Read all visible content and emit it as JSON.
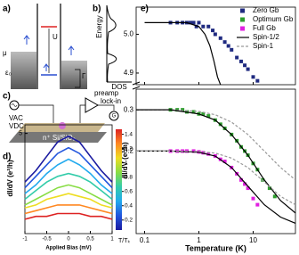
{
  "diagrams": {
    "a": {
      "label": "a)",
      "u": "U",
      "mu": "μ",
      "epsilon": "ε₀",
      "gamma": "Γ"
    },
    "b": {
      "label": "b)",
      "y_label": "Energy",
      "x_label": "DOS"
    },
    "c": {
      "label": "c)",
      "v_ac": "VAC",
      "v_dc": "VDC",
      "preamp": "preamp",
      "lock_in": "lock-in",
      "g": "G",
      "substrate": "n⁺ Si/SiO₂"
    }
  },
  "chart_data": [
    {
      "type": "scatter",
      "panel_label": "e)",
      "xlabel": "Temperature (K)",
      "ylabel": "dI/dV (e²/h)",
      "log_x": true,
      "xlim": [
        0.07,
        60
      ],
      "xticks": [
        0.1,
        1,
        10
      ],
      "panels": [
        {
          "ylim": [
            4.87,
            5.07
          ],
          "yticks": [
            {
              "value": 4.9,
              "label": "4.9"
            },
            {
              "value": 5,
              "label": "5.0"
            }
          ]
        },
        {
          "ylim": [
            0,
            0.35
          ],
          "yticks": [
            0.2,
            0.3
          ]
        }
      ],
      "series": [
        {
          "name": "Zero Gb",
          "color": "#1f2a80",
          "style": "markers",
          "panel": 0,
          "x": [
            0.3,
            0.4,
            0.5,
            0.6,
            0.7,
            0.8,
            0.9,
            1.0,
            1.2,
            1.5,
            1.8,
            2.0,
            2.5,
            3,
            3.5,
            4,
            5,
            6,
            7,
            8,
            10,
            12
          ],
          "values": [
            5.03,
            5.03,
            5.03,
            5.03,
            5.03,
            5.03,
            5.02,
            5.03,
            5.02,
            5.02,
            5.01,
            5.0,
            4.99,
            4.98,
            4.97,
            4.96,
            4.94,
            4.93,
            4.92,
            4.91,
            4.89,
            4.88
          ]
        },
        {
          "name": "Optimum Gb",
          "color": "#2e9e2e",
          "style": "markers",
          "panel": 1,
          "x": [
            0.3,
            0.4,
            0.5,
            0.6,
            0.8,
            1,
            1.2,
            1.5,
            2,
            2.5,
            3,
            4,
            5,
            6,
            7,
            8,
            10,
            12,
            15,
            20,
            25
          ],
          "values": [
            0.3,
            0.3,
            0.3,
            0.295,
            0.295,
            0.29,
            0.29,
            0.285,
            0.275,
            0.265,
            0.255,
            0.24,
            0.225,
            0.21,
            0.2,
            0.19,
            0.17,
            0.155,
            0.13,
            0.11,
            0.09
          ]
        },
        {
          "name": "Full Gb",
          "color": "#e020e0",
          "style": "markers",
          "panel": 1,
          "x": [
            0.3,
            0.4,
            0.5,
            0.6,
            0.8,
            1,
            1.2,
            1.5,
            2,
            2.5,
            3,
            4,
            5,
            6,
            7,
            8,
            10,
            12
          ],
          "values": [
            0.2,
            0.2,
            0.2,
            0.2,
            0.2,
            0.198,
            0.196,
            0.193,
            0.188,
            0.18,
            0.175,
            0.16,
            0.145,
            0.13,
            0.12,
            0.11,
            0.085,
            0.07
          ]
        },
        {
          "name": "Spin-1/2",
          "color": "#000000",
          "style": "line",
          "panel": 0,
          "x": [
            0.1,
            0.3,
            0.6,
            1.0,
            1.3,
            1.6,
            1.9,
            2.2,
            2.5
          ],
          "values": [
            5.03,
            5.03,
            5.03,
            5.02,
            5.0,
            4.97,
            4.93,
            4.89,
            4.87
          ]
        },
        {
          "name": "Spin-1",
          "color": "#999999",
          "style": "line",
          "dash": true,
          "panel": 1,
          "x": [
            0.07,
            0.3,
            1,
            2,
            4,
            8,
            16,
            32,
            60
          ],
          "values": [
            0.3,
            0.3,
            0.296,
            0.288,
            0.27,
            0.24,
            0.2,
            0.16,
            0.13
          ]
        },
        {
          "color": "#000000",
          "style": "line",
          "panel": 1,
          "x": [
            0.07,
            0.3,
            1,
            2,
            4,
            8,
            16,
            32,
            60
          ],
          "values": [
            0.3,
            0.3,
            0.29,
            0.275,
            0.24,
            0.19,
            0.13,
            0.08,
            0.05
          ]
        },
        {
          "color": "#000000",
          "style": "line",
          "panel": 1,
          "x": [
            0.07,
            0.3,
            1,
            2,
            4,
            8,
            16,
            32,
            60
          ],
          "values": [
            0.2,
            0.2,
            0.197,
            0.188,
            0.16,
            0.115,
            0.07,
            0.04,
            0.025
          ]
        },
        {
          "color": "#999999",
          "style": "line",
          "dash": true,
          "panel": 1,
          "x": [
            0.07,
            0.3,
            1,
            2,
            4,
            8,
            16,
            32,
            60
          ],
          "values": [
            0.2,
            0.2,
            0.199,
            0.195,
            0.183,
            0.16,
            0.125,
            0.09,
            0.07
          ]
        }
      ]
    },
    {
      "type": "line",
      "panel_label": "d)",
      "xlabel": "Applied Bias (mV)",
      "ylabel": "dI/dV (e²/h)",
      "x": [
        -1,
        -0.75,
        -0.5,
        -0.25,
        0,
        0.25,
        0.5,
        0.75,
        1
      ],
      "xlim": [
        -1,
        1
      ],
      "xticks": [
        -1,
        -0.5,
        0,
        0.5,
        1
      ],
      "ylim": [
        1.5,
        5.3
      ],
      "yticks": [
        5
      ],
      "series": [
        {
          "color": "#1a1aa0",
          "values": [
            3.3,
            3.7,
            4.2,
            4.7,
            4.9,
            4.7,
            4.2,
            3.7,
            3.3
          ]
        },
        {
          "color": "#2255dd",
          "values": [
            3.1,
            3.5,
            3.9,
            4.3,
            4.5,
            4.3,
            3.9,
            3.5,
            3.1
          ]
        },
        {
          "color": "#22aaee",
          "values": [
            2.9,
            3.2,
            3.6,
            3.9,
            4.1,
            3.9,
            3.6,
            3.2,
            2.9
          ]
        },
        {
          "color": "#33ccaa",
          "values": [
            2.7,
            3.0,
            3.3,
            3.5,
            3.6,
            3.5,
            3.3,
            3.0,
            2.7
          ]
        },
        {
          "color": "#88dd44",
          "values": [
            2.5,
            2.7,
            2.9,
            3.1,
            3.2,
            3.1,
            2.9,
            2.7,
            2.5
          ]
        },
        {
          "color": "#eedd22",
          "values": [
            2.4,
            2.5,
            2.7,
            2.8,
            2.9,
            2.8,
            2.7,
            2.5,
            2.4
          ]
        },
        {
          "color": "#ff8822",
          "values": [
            2.2,
            2.3,
            2.4,
            2.5,
            2.5,
            2.5,
            2.4,
            2.3,
            2.2
          ]
        },
        {
          "color": "#dd2222",
          "values": [
            2.0,
            2.1,
            2.1,
            2.2,
            2.2,
            2.2,
            2.1,
            2.1,
            2.0
          ]
        }
      ],
      "colorbar": {
        "label": "T/Tₖ",
        "lim": [
          0.06,
          1.47
        ],
        "ticks": [
          0.2,
          0.4,
          0.6,
          0.8,
          1,
          1.2,
          1.4
        ]
      }
    }
  ]
}
